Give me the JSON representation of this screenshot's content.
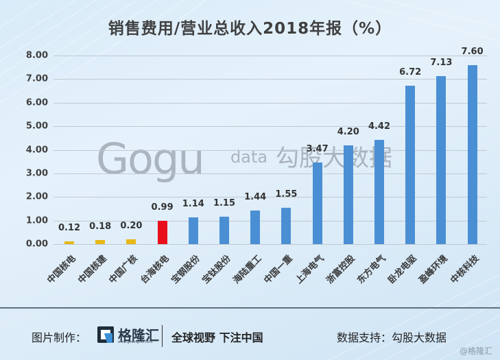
{
  "title": "销售费用/营业总收入2018年报（%）",
  "chart_data": {
    "type": "bar",
    "title": "销售费用/营业总收入2018年报（%）",
    "xlabel": "",
    "ylabel": "",
    "ylim": [
      0,
      8
    ],
    "yticks": [
      "0.00",
      "1.00",
      "2.00",
      "3.00",
      "4.00",
      "5.00",
      "6.00",
      "7.00",
      "8.00"
    ],
    "grid": true,
    "legend": "none",
    "categories": [
      "中国核电",
      "中国核建",
      "中国广核",
      "台海核电",
      "宝钢股份",
      "宝钛股份",
      "海陆重工",
      "中国一重",
      "上海电气",
      "浙富控股",
      "东方电气",
      "卧龙电驱",
      "盈峰环境",
      "中核科技"
    ],
    "values": [
      0.12,
      0.18,
      0.2,
      0.99,
      1.14,
      1.15,
      1.44,
      1.55,
      3.47,
      4.2,
      4.42,
      6.72,
      7.13,
      7.6
    ],
    "value_labels": [
      "0.12",
      "0.18",
      "0.20",
      "0.99",
      "1.14",
      "1.15",
      "1.44",
      "1.55",
      "3.47",
      "4.20",
      "4.42",
      "6.72",
      "7.13",
      "7.60"
    ],
    "bar_colors": [
      "#e8b818",
      "#e8b818",
      "#e8b818",
      "#e8101a",
      "#4a8fd4",
      "#4a8fd4",
      "#4a8fd4",
      "#4a8fd4",
      "#4a8fd4",
      "#4a8fd4",
      "#4a8fd4",
      "#4a8fd4",
      "#4a8fd4",
      "#4a8fd4"
    ]
  },
  "watermark": {
    "logo": "Gogu",
    "data": "data",
    "cn": "勾股大数据"
  },
  "footer": {
    "made_by_label": "图片制作：",
    "brand_cn": "格隆汇",
    "brand_url": "www.gelonghui.com",
    "slogan": "全球视野 下注中国",
    "data_support": "数据支持：勾股大数据",
    "credit": "@格隆汇"
  }
}
